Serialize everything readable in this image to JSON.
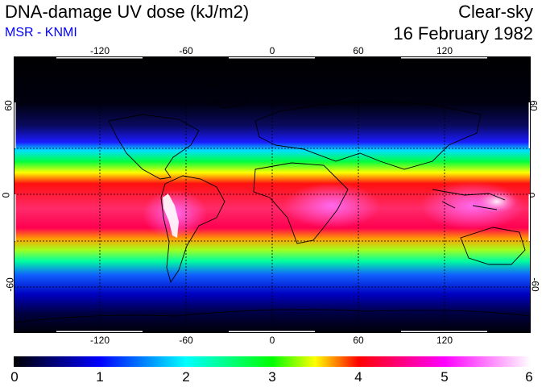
{
  "header": {
    "title": "DNA-damage UV dose (kJ/m2)",
    "source": "MSR - KNMI",
    "condition": "Clear-sky",
    "date": "16 February 1982"
  },
  "map": {
    "projection": "equirectangular",
    "lon_range": [
      -180,
      180
    ],
    "lat_range": [
      -90,
      90
    ],
    "lon_ticks": [
      "-120",
      "-60",
      "0",
      "60",
      "120"
    ],
    "lat_ticks": [
      "60",
      "0",
      "-60"
    ],
    "gridlines": "dashed every 30 degrees",
    "field": "UV dose maximum near 10S-30S band, minimum at poles"
  },
  "colorbar": {
    "ticks": [
      "0",
      "1",
      "2",
      "3",
      "4",
      "5",
      "6"
    ],
    "colors": [
      "#000000",
      "#0000ff",
      "#00ffff",
      "#00ff00",
      "#ffff00",
      "#ff0000",
      "#ff00ff",
      "#ffffff"
    ]
  }
}
